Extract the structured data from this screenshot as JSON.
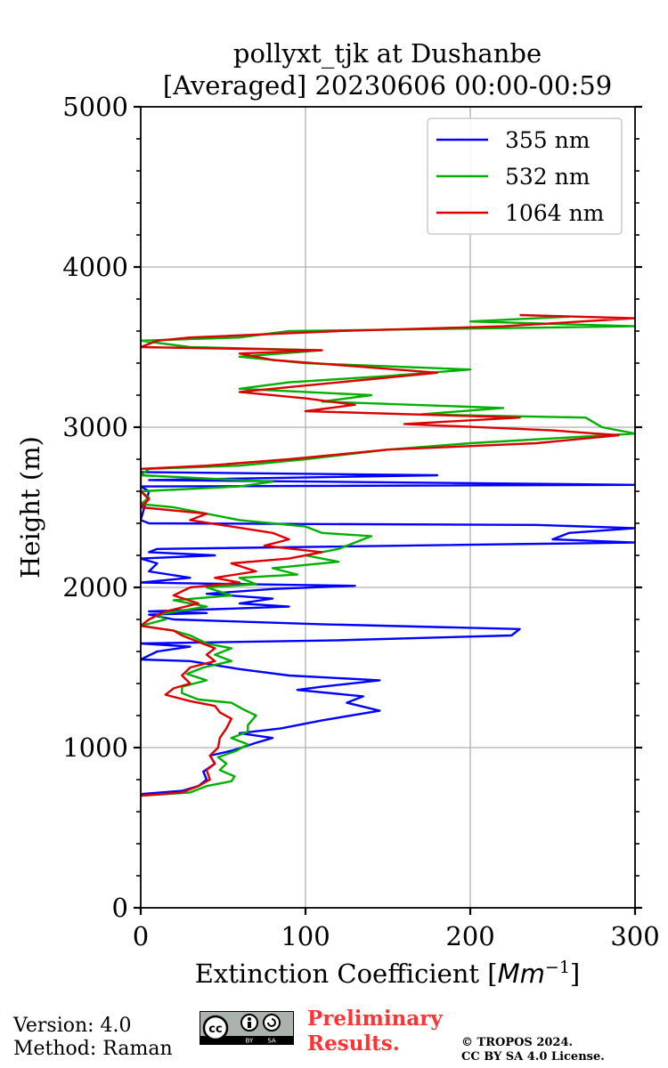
{
  "chart_data": {
    "type": "line",
    "title_line1": "pollyxt_tjk at Dushanbe",
    "title_line2": "[Averaged] 20230606 00:00-00:59",
    "xlabel_main": "Extinction Coefficient [",
    "xlabel_unit": "Mm",
    "xlabel_exp": "−1",
    "xlabel_end": "]",
    "ylabel": "Height (m)",
    "xlim": [
      0,
      300
    ],
    "ylim": [
      0,
      5000
    ],
    "xticks": [
      0,
      100,
      200,
      300
    ],
    "yticks": [
      0,
      1000,
      2000,
      3000,
      4000,
      5000
    ],
    "grid": true,
    "legend_position": "top-right",
    "series": [
      {
        "name": "355 nm",
        "color": "#0000ff",
        "points": [
          [
            0,
            710
          ],
          [
            25,
            730
          ],
          [
            35,
            760
          ],
          [
            40,
            800
          ],
          [
            38,
            850
          ],
          [
            45,
            900
          ],
          [
            42,
            950
          ],
          [
            55,
            980
          ],
          [
            70,
            1030
          ],
          [
            80,
            1060
          ],
          [
            60,
            1090
          ],
          [
            85,
            1120
          ],
          [
            110,
            1170
          ],
          [
            145,
            1230
          ],
          [
            125,
            1280
          ],
          [
            135,
            1320
          ],
          [
            95,
            1360
          ],
          [
            110,
            1380
          ],
          [
            145,
            1420
          ],
          [
            90,
            1450
          ],
          [
            60,
            1490
          ],
          [
            30,
            1540
          ],
          [
            0,
            1550
          ],
          [
            10,
            1600
          ],
          [
            30,
            1630
          ],
          [
            0,
            1650
          ],
          [
            120,
            1670
          ],
          [
            225,
            1700
          ],
          [
            230,
            1740
          ],
          [
            110,
            1770
          ],
          [
            20,
            1800
          ],
          [
            5,
            1830
          ],
          [
            40,
            1840
          ],
          [
            5,
            1850
          ],
          [
            90,
            1880
          ],
          [
            60,
            1900
          ],
          [
            80,
            1930
          ],
          [
            40,
            1960
          ],
          [
            80,
            1990
          ],
          [
            130,
            2010
          ],
          [
            0,
            2030
          ],
          [
            30,
            2060
          ],
          [
            5,
            2100
          ],
          [
            10,
            2150
          ],
          [
            0,
            2180
          ],
          [
            45,
            2200
          ],
          [
            5,
            2220
          ],
          [
            10,
            2240
          ],
          [
            300,
            2280
          ],
          [
            250,
            2300
          ],
          [
            260,
            2340
          ],
          [
            300,
            2370
          ],
          [
            240,
            2390
          ],
          [
            5,
            2400
          ],
          [
            0,
            2420
          ],
          [
            5,
            2600
          ],
          [
            0,
            2630
          ],
          [
            300,
            2640
          ],
          [
            110,
            2660
          ],
          [
            5,
            2670
          ],
          [
            180,
            2700
          ],
          [
            0,
            2720
          ]
        ]
      },
      {
        "name": "532 nm",
        "color": "#00b000",
        "points": [
          [
            0,
            700
          ],
          [
            30,
            720
          ],
          [
            40,
            760
          ],
          [
            55,
            790
          ],
          [
            57,
            820
          ],
          [
            48,
            860
          ],
          [
            52,
            900
          ],
          [
            47,
            940
          ],
          [
            58,
            980
          ],
          [
            65,
            1020
          ],
          [
            55,
            1060
          ],
          [
            65,
            1100
          ],
          [
            65,
            1140
          ],
          [
            70,
            1200
          ],
          [
            62,
            1240
          ],
          [
            55,
            1280
          ],
          [
            35,
            1300
          ],
          [
            25,
            1340
          ],
          [
            25,
            1380
          ],
          [
            40,
            1420
          ],
          [
            28,
            1460
          ],
          [
            38,
            1500
          ],
          [
            55,
            1540
          ],
          [
            45,
            1580
          ],
          [
            55,
            1620
          ],
          [
            40,
            1650
          ],
          [
            30,
            1700
          ],
          [
            20,
            1730
          ],
          [
            0,
            1760
          ],
          [
            15,
            1800
          ],
          [
            10,
            1830
          ],
          [
            40,
            1880
          ],
          [
            20,
            1920
          ],
          [
            55,
            1950
          ],
          [
            40,
            2000
          ],
          [
            70,
            2020
          ],
          [
            60,
            2060
          ],
          [
            95,
            2080
          ],
          [
            80,
            2120
          ],
          [
            120,
            2160
          ],
          [
            100,
            2200
          ],
          [
            120,
            2240
          ],
          [
            130,
            2280
          ],
          [
            140,
            2320
          ],
          [
            110,
            2340
          ],
          [
            100,
            2380
          ],
          [
            60,
            2420
          ],
          [
            40,
            2460
          ],
          [
            20,
            2500
          ],
          [
            0,
            2520
          ],
          [
            5,
            2560
          ],
          [
            0,
            2600
          ],
          [
            60,
            2630
          ],
          [
            80,
            2660
          ],
          [
            0,
            2700
          ],
          [
            5,
            2740
          ],
          [
            60,
            2760
          ],
          [
            100,
            2800
          ],
          [
            150,
            2860
          ],
          [
            200,
            2900
          ],
          [
            300,
            2960
          ],
          [
            280,
            3000
          ],
          [
            270,
            3060
          ],
          [
            170,
            3080
          ],
          [
            220,
            3120
          ],
          [
            110,
            3160
          ],
          [
            140,
            3200
          ],
          [
            60,
            3240
          ],
          [
            90,
            3280
          ],
          [
            150,
            3320
          ],
          [
            200,
            3360
          ],
          [
            100,
            3400
          ],
          [
            60,
            3440
          ],
          [
            110,
            3480
          ],
          [
            30,
            3500
          ],
          [
            0,
            3540
          ],
          [
            60,
            3560
          ],
          [
            90,
            3600
          ],
          [
            300,
            3630
          ],
          [
            200,
            3660
          ],
          [
            260,
            3690
          ]
        ]
      },
      {
        "name": "1064 nm",
        "color": "#dd0000",
        "points": [
          [
            0,
            700
          ],
          [
            25,
            720
          ],
          [
            35,
            760
          ],
          [
            42,
            800
          ],
          [
            40,
            860
          ],
          [
            45,
            900
          ],
          [
            42,
            950
          ],
          [
            47,
            1000
          ],
          [
            48,
            1060
          ],
          [
            52,
            1120
          ],
          [
            55,
            1180
          ],
          [
            48,
            1220
          ],
          [
            45,
            1260
          ],
          [
            30,
            1290
          ],
          [
            15,
            1330
          ],
          [
            20,
            1370
          ],
          [
            30,
            1400
          ],
          [
            25,
            1450
          ],
          [
            30,
            1500
          ],
          [
            45,
            1540
          ],
          [
            40,
            1580
          ],
          [
            45,
            1620
          ],
          [
            35,
            1660
          ],
          [
            25,
            1700
          ],
          [
            20,
            1730
          ],
          [
            0,
            1760
          ],
          [
            5,
            1800
          ],
          [
            15,
            1850
          ],
          [
            35,
            1900
          ],
          [
            20,
            1950
          ],
          [
            30,
            2000
          ],
          [
            60,
            2030
          ],
          [
            45,
            2060
          ],
          [
            70,
            2100
          ],
          [
            55,
            2150
          ],
          [
            90,
            2180
          ],
          [
            110,
            2220
          ],
          [
            75,
            2260
          ],
          [
            90,
            2300
          ],
          [
            80,
            2340
          ],
          [
            55,
            2380
          ],
          [
            30,
            2420
          ],
          [
            40,
            2460
          ],
          [
            0,
            2500
          ],
          [
            5,
            2550
          ],
          [
            0,
            2600
          ],
          [
            0,
            2740
          ],
          [
            40,
            2760
          ],
          [
            90,
            2800
          ],
          [
            150,
            2860
          ],
          [
            240,
            2900
          ],
          [
            290,
            2950
          ],
          [
            250,
            2980
          ],
          [
            160,
            3020
          ],
          [
            230,
            3060
          ],
          [
            100,
            3100
          ],
          [
            130,
            3140
          ],
          [
            100,
            3180
          ],
          [
            60,
            3220
          ],
          [
            100,
            3260
          ],
          [
            140,
            3300
          ],
          [
            180,
            3340
          ],
          [
            130,
            3380
          ],
          [
            80,
            3420
          ],
          [
            60,
            3460
          ],
          [
            110,
            3480
          ],
          [
            0,
            3500
          ],
          [
            10,
            3540
          ],
          [
            30,
            3560
          ],
          [
            120,
            3600
          ],
          [
            220,
            3630
          ],
          [
            300,
            3680
          ],
          [
            230,
            3700
          ]
        ]
      }
    ]
  },
  "footer": {
    "version_line": "Version: 4.0",
    "method_line": "Method: Raman",
    "preliminary_line1": "Preliminary",
    "preliminary_line2": "Results.",
    "copyright_line1": "© TROPOS 2024.",
    "copyright_line2": "CC BY SA 4.0 License.",
    "license_badge": {
      "icon": "creative-commons-by-sa-icon",
      "cc_text": "cc",
      "by_text": "BY",
      "sa_text": "SA"
    }
  }
}
